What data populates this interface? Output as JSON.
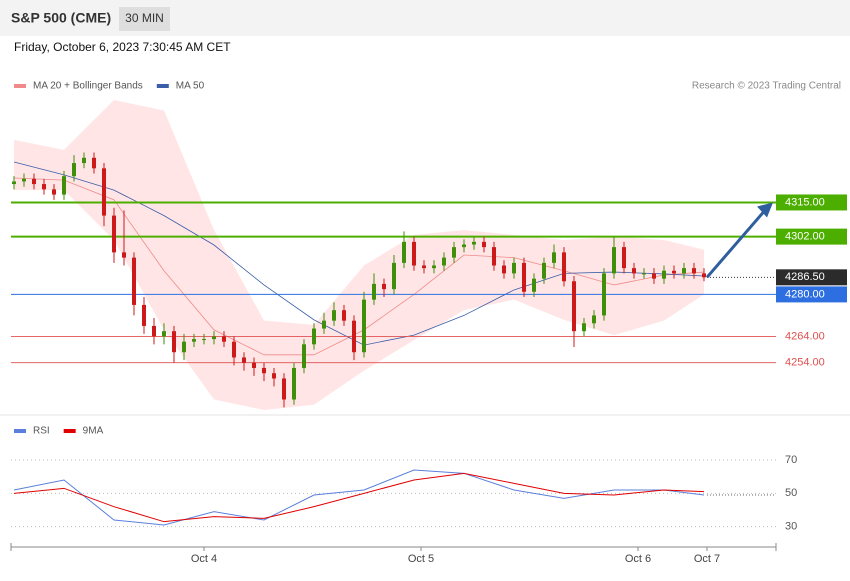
{
  "header": {
    "title": "S&P 500 (CME)",
    "interval": "30 MIN",
    "timestamp": "Friday, October 6, 2023 7:30:45 AM CET"
  },
  "chart_data": [
    {
      "type": "candlestick",
      "source": "Research © 2023 Trading Central",
      "xlim": [
        -0.3,
        76.2
      ],
      "ylim": [
        4236,
        4354
      ],
      "up_color": "#3f8f0a",
      "down_color": "#cc1a1a",
      "band_color": "#ffdede",
      "candles": [
        [
          4322,
          4325,
          4320,
          4323
        ],
        [
          4323,
          4326,
          4321,
          4324
        ],
        [
          4324,
          4326,
          4320,
          4322
        ],
        [
          4322,
          4324,
          4318,
          4320
        ],
        [
          4320,
          4322,
          4316,
          4318
        ],
        [
          4318,
          4327,
          4316,
          4325
        ],
        [
          4325,
          4333,
          4323,
          4330
        ],
        [
          4330,
          4334,
          4328,
          4332
        ],
        [
          4332,
          4334,
          4326,
          4328
        ],
        [
          4328,
          4330,
          4306,
          4310
        ],
        [
          4310,
          4313,
          4292,
          4296
        ],
        [
          4296,
          4312,
          4291,
          4294
        ],
        [
          4294,
          4296,
          4272,
          4276
        ],
        [
          4276,
          4279,
          4265,
          4268
        ],
        [
          4268,
          4271,
          4261,
          4264
        ],
        [
          4264,
          4269,
          4261,
          4266
        ],
        [
          4266,
          4268,
          4254,
          4258
        ],
        [
          4258,
          4265,
          4255,
          4262
        ],
        [
          4262,
          4265,
          4260,
          4263
        ],
        [
          4263,
          4265,
          4261,
          4263
        ],
        [
          4263,
          4266,
          4261,
          4264
        ],
        [
          4264,
          4266,
          4260,
          4262
        ],
        [
          4262,
          4264,
          4253,
          4256
        ],
        [
          4256,
          4258,
          4251,
          4254
        ],
        [
          4254,
          4256,
          4249,
          4252
        ],
        [
          4252,
          4254,
          4247,
          4250
        ],
        [
          4250,
          4252,
          4245,
          4248
        ],
        [
          4248,
          4250,
          4237,
          4240
        ],
        [
          4240,
          4254,
          4238,
          4252
        ],
        [
          4252,
          4263,
          4250,
          4261
        ],
        [
          4261,
          4269,
          4259,
          4267
        ],
        [
          4267,
          4273,
          4265,
          4270
        ],
        [
          4270,
          4277,
          4268,
          4274
        ],
        [
          4274,
          4276,
          4268,
          4270
        ],
        [
          4270,
          4272,
          4255,
          4258
        ],
        [
          4258,
          4281,
          4256,
          4278
        ],
        [
          4278,
          4288,
          4276,
          4284
        ],
        [
          4284,
          4286,
          4279,
          4282
        ],
        [
          4282,
          4295,
          4280,
          4292
        ],
        [
          4292,
          4304,
          4290,
          4300
        ],
        [
          4300,
          4302,
          4289,
          4291
        ],
        [
          4291,
          4293,
          4288,
          4290
        ],
        [
          4290,
          4293,
          4288,
          4291
        ],
        [
          4291,
          4296,
          4289,
          4294
        ],
        [
          4294,
          4300,
          4292,
          4298
        ],
        [
          4298,
          4301,
          4296,
          4299
        ],
        [
          4299,
          4302,
          4297,
          4300
        ],
        [
          4300,
          4302,
          4296,
          4298
        ],
        [
          4298,
          4300,
          4289,
          4291
        ],
        [
          4291,
          4293,
          4286,
          4288
        ],
        [
          4288,
          4294,
          4286,
          4292
        ],
        [
          4292,
          4294,
          4279,
          4281
        ],
        [
          4281,
          4288,
          4279,
          4286
        ],
        [
          4286,
          4294,
          4284,
          4292
        ],
        [
          4292,
          4299,
          4290,
          4296
        ],
        [
          4296,
          4298,
          4283,
          4285
        ],
        [
          4285,
          4287,
          4260,
          4266
        ],
        [
          4266,
          4271,
          4264,
          4269
        ],
        [
          4269,
          4274,
          4267,
          4272
        ],
        [
          4272,
          4290,
          4270,
          4288
        ],
        [
          4288,
          4302,
          4286,
          4298
        ],
        [
          4298,
          4300,
          4288,
          4290
        ],
        [
          4290,
          4292,
          4286,
          4288
        ],
        [
          4288,
          4290,
          4286,
          4288
        ],
        [
          4288,
          4290,
          4284,
          4286
        ],
        [
          4286,
          4291,
          4284,
          4289
        ],
        [
          4289,
          4291,
          4286,
          4288
        ],
        [
          4288,
          4292,
          4286,
          4290
        ],
        [
          4290,
          4292,
          4286,
          4288
        ],
        [
          4288,
          4290,
          4285,
          4286.5
        ]
      ],
      "x": [
        0,
        5,
        10,
        15,
        20,
        25,
        30,
        35,
        40,
        45,
        50,
        55,
        60,
        65,
        69
      ],
      "series": [
        {
          "name": "MA 20 + Bollinger Bands",
          "color": "#f08a8a",
          "values": [
            4324.3,
            4323.5,
            4316,
            4289,
            4266.5,
            4257,
            4257,
            4266.5,
            4280,
            4295,
            4294,
            4289,
            4283.6,
            4287.4,
            4288.5
          ],
          "upper": [
            4338.8,
            4335,
            4354,
            4350,
            4304.5,
            4270,
            4268.4,
            4291,
            4302.6,
            4304.5,
            4302.6,
            4300.7,
            4302,
            4300.7,
            4297
          ],
          "lower": [
            4319.7,
            4319.7,
            4300.7,
            4266.5,
            4240,
            4236,
            4238,
            4251,
            4262.6,
            4274,
            4278,
            4270.3,
            4264.5,
            4270,
            4280
          ]
        },
        {
          "name": "MA 50",
          "color": "#3a5ea8",
          "values": [
            4330.4,
            4325.5,
            4319.7,
            4310,
            4298.8,
            4283.6,
            4270.3,
            4260.7,
            4264.5,
            4272,
            4281.7,
            4288,
            4288.5,
            4287.8,
            4287
          ]
        }
      ],
      "levels": [
        {
          "value": 4315,
          "label": "4315.00",
          "color": "#4caf00",
          "style": "box"
        },
        {
          "value": 4302,
          "label": "4302.00",
          "color": "#4caf00",
          "style": "box"
        },
        {
          "value": 4286.5,
          "label": "4286.50",
          "color": "#2b2b2b",
          "style": "current"
        },
        {
          "value": 4280,
          "label": "4280.00",
          "color": "#2d6fe0",
          "style": "box"
        },
        {
          "value": 4264,
          "label": "4264.00",
          "color": "#e05050",
          "style": "text"
        },
        {
          "value": 4254,
          "label": "4254.00",
          "color": "#e05050",
          "style": "text"
        }
      ]
    },
    {
      "type": "line",
      "xlim": [
        -0.3,
        76.2
      ],
      "ylim": [
        19,
        82
      ],
      "xticks": [
        {
          "value": 19,
          "label": "Oct 4"
        },
        {
          "value": 40.7,
          "label": "Oct 5"
        },
        {
          "value": 62.4,
          "label": "Oct 6"
        },
        {
          "value": 69.3,
          "label": "Oct 7"
        }
      ],
      "yticks": [
        70,
        50,
        30
      ],
      "grid": true,
      "x": [
        0,
        5,
        10,
        15,
        20,
        25,
        30,
        35,
        40,
        45,
        50,
        55,
        60,
        65,
        69
      ],
      "series": [
        {
          "name": "RSI",
          "color": "#5b7fdb",
          "values": [
            52,
            58,
            34,
            31,
            39,
            34,
            49,
            52,
            64,
            62,
            52,
            47,
            52,
            52,
            49
          ]
        },
        {
          "name": "9MA",
          "color": "#e00000",
          "values": [
            50,
            53,
            42,
            33,
            36,
            35,
            42,
            50,
            58,
            62,
            56,
            50,
            49,
            52,
            51
          ]
        }
      ]
    }
  ]
}
